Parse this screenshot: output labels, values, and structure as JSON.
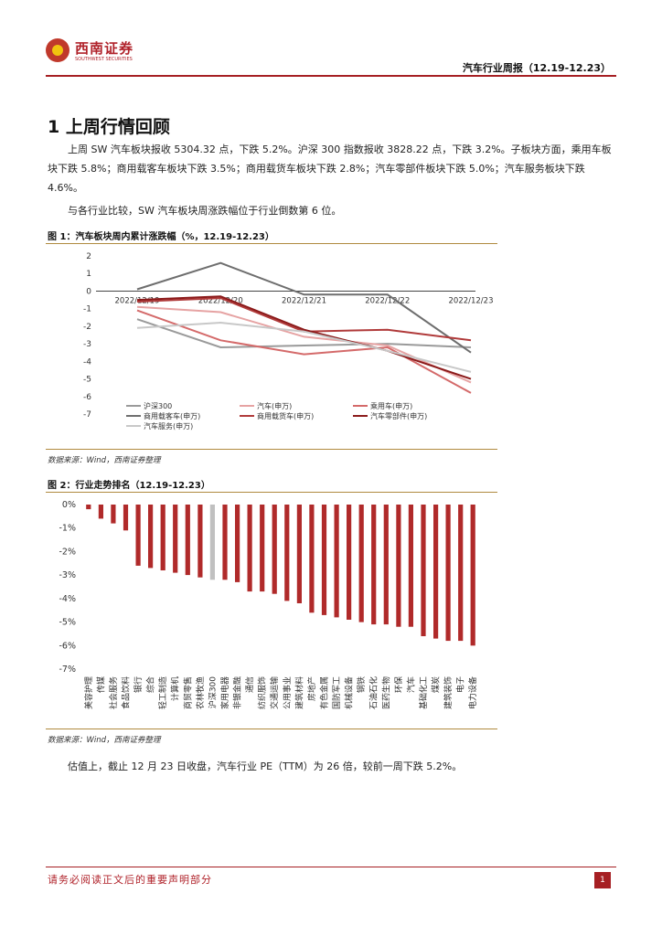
{
  "header": {
    "logo_cn": "西南证券",
    "logo_en": "SOUTHWEST SECURITIES",
    "report_title": "汽车行业周报（12.19-12.23）"
  },
  "section": {
    "heading": "1 上周行情回顾",
    "para1": "上周 SW 汽车板块报收 5304.32 点，下跌 5.2%。沪深 300 指数报收 3828.22 点，下跌 3.2%。子板块方面，乘用车板块下跌 5.8%；商用载客车板块下跌 3.5%；商用载货车板块下跌 2.8%；汽车零部件板块下跌 5.0%；汽车服务板块下跌 4.6%。",
    "para2": "与各行业比较，SW 汽车板块周涨跌幅位于行业倒数第 6 位。",
    "para3": "估值上，截止 12 月 23 日收盘，汽车行业 PE（TTM）为 26 倍，较前一周下跌 5.2%。"
  },
  "figure1": {
    "title": "图 1：汽车板块周内累计涨跌幅（%，12.19-12.23）",
    "source": "数据来源：Wind，西南证券整理"
  },
  "figure2": {
    "title": "图 2：行业走势排名（12.19-12.23）",
    "source": "数据来源：Wind，西南证券整理"
  },
  "footer": {
    "disclaimer": "请务必阅读正文后的重要声明部分",
    "page": "1"
  },
  "chart_data": [
    {
      "type": "line",
      "title": "",
      "x": [
        "2022/12/19",
        "2022/12/20",
        "2022/12/21",
        "2022/12/22",
        "2022/12/23"
      ],
      "ylim": [
        -7,
        2
      ],
      "yticks": [
        2,
        1,
        0,
        -1,
        -2,
        -3,
        -4,
        -5,
        -6,
        -7
      ],
      "legend_position": "bottom",
      "series": [
        {
          "name": "沪深300",
          "color": "#9a9a9a",
          "values": [
            -1.6,
            -3.2,
            -3.1,
            -3.0,
            -3.2
          ]
        },
        {
          "name": "汽车(申万)",
          "color": "#e6a3a3",
          "values": [
            -0.9,
            -1.2,
            -2.6,
            -3.1,
            -5.2
          ]
        },
        {
          "name": "乘用车(申万)",
          "color": "#d46a6a",
          "values": [
            -1.1,
            -2.8,
            -3.6,
            -3.2,
            -5.8
          ]
        },
        {
          "name": "商用载客车(申万)",
          "color": "#6e6e6e",
          "values": [
            0.1,
            1.6,
            -0.2,
            -0.2,
            -3.5
          ]
        },
        {
          "name": "商用载货车(申万)",
          "color": "#b03a3a",
          "values": [
            -0.6,
            -0.4,
            -2.3,
            -2.2,
            -2.8
          ]
        },
        {
          "name": "汽车零部件(申万)",
          "color": "#8b1a1a",
          "values": [
            -0.5,
            -0.3,
            -2.2,
            -3.4,
            -5.0
          ]
        },
        {
          "name": "汽车服务(申万)",
          "color": "#c8c8c8",
          "values": [
            -2.1,
            -1.8,
            -2.3,
            -3.4,
            -4.6
          ]
        }
      ]
    },
    {
      "type": "bar",
      "title": "",
      "ylim": [
        -7,
        0
      ],
      "yticks": [
        "0%",
        "-1%",
        "-2%",
        "-3%",
        "-4%",
        "-5%",
        "-6%",
        "-7%"
      ],
      "bar_color": "#b02a2a",
      "highlight_color": "#c0c0c0",
      "highlight_category": "沪深300",
      "categories": [
        "美容护理",
        "传媒",
        "社会服务",
        "食品饮料",
        "银行",
        "综合",
        "轻工制造",
        "计算机",
        "商贸零售",
        "农林牧渔",
        "沪深300",
        "家用电器",
        "非银金融",
        "通信",
        "纺织服饰",
        "交通运输",
        "公用事业",
        "建筑材料",
        "房地产",
        "有色金属",
        "国防军工",
        "机械设备",
        "钢铁",
        "石油石化",
        "医药生物",
        "环保",
        "汽车",
        "基础化工",
        "煤炭",
        "建筑装饰",
        "电子",
        "电力设备"
      ],
      "values": [
        -0.2,
        -0.6,
        -0.8,
        -1.1,
        -2.6,
        -2.7,
        -2.8,
        -2.9,
        -3.0,
        -3.1,
        -3.2,
        -3.2,
        -3.3,
        -3.7,
        -3.7,
        -3.8,
        -4.1,
        -4.2,
        -4.6,
        -4.7,
        -4.8,
        -4.9,
        -5.0,
        -5.1,
        -5.1,
        -5.2,
        -5.2,
        -5.6,
        -5.7,
        -5.8,
        -5.8,
        -6.0
      ]
    }
  ]
}
